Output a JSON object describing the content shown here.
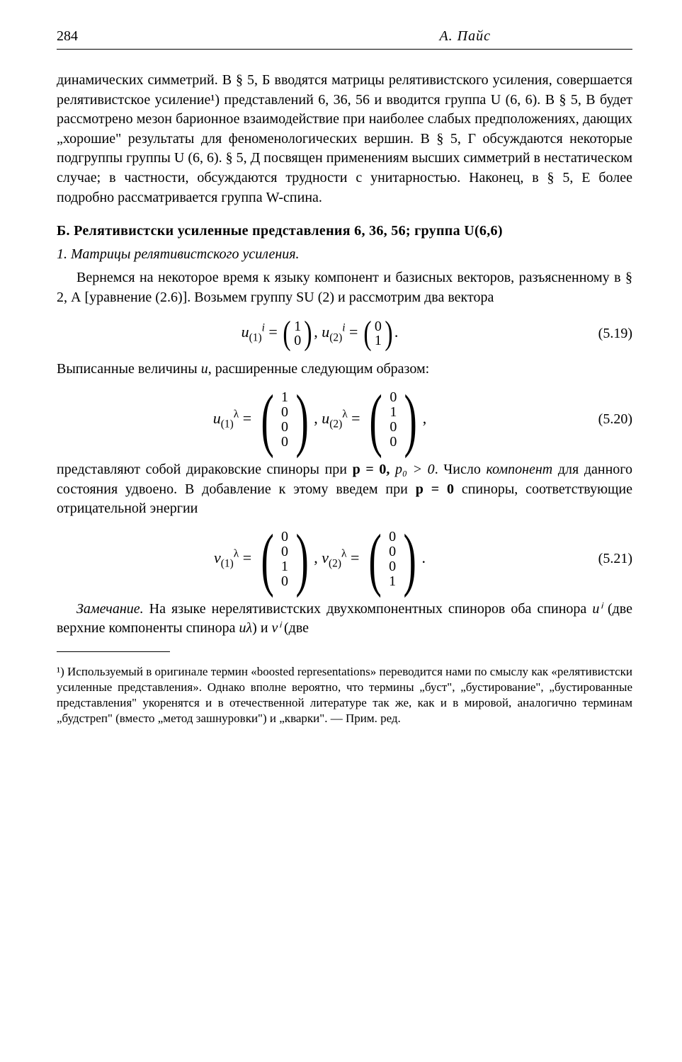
{
  "header": {
    "page_number": "284",
    "author": "А. Пайс"
  },
  "p1": "динамических симметрий. В § 5, Б вводятся матрицы релятивистского усиления, совершается релятивистское усиление¹) представлений 6, 36, 56 и вводится группа U (6, 6). В § 5, В будет рассмотрено мезон барионное взаимодействие при наиболее слабых предположениях, дающих „хорошие\" результаты для феноменологических вершин. В § 5, Г обсуждаются некоторые подгруппы группы U (6, 6). § 5, Д посвящен применениям высших симметрий в нестатическом случае; в частности, обсуждаются трудности с унитарностью. Наконец, в § 5, Е более подробно рассматривается группа W-спина.",
  "section_b": "Б. Релятивистски усиленные представления 6, 36, 56; группа U(6,6)",
  "subsection_1": "1. Матрицы релятивистского усиления.",
  "p2": "Вернемся на некоторое время к языку компонент и базисных векторов, разъясненному в § 2, А [уравнение (2.6)]. Возьмем группу SU (2) и рассмотрим два вектора",
  "eq_519": {
    "u1_label_pre": "u",
    "u1_sub": "(1)",
    "u1_sup": "i",
    "u1_eq": " = ",
    "u1_top": "1",
    "u1_bot": "0",
    "sep": ",    ",
    "u2_label_pre": "u",
    "u2_sub": "(2)",
    "u2_sup": "i",
    "u2_eq": " = ",
    "u2_top": "0",
    "u2_bot": "1",
    "tail": ".",
    "num": "(5.19)"
  },
  "p3_pre": "Выписанные величины ",
  "p3_u": "u",
  "p3_post": ", расширенные следующим образом:",
  "eq_520": {
    "u1_label_pre": "u",
    "u1_sub": "(1)",
    "u1_sup": "λ",
    "eq": " = ",
    "u1_c1": "1",
    "u1_c2": "0",
    "u1_c3": "0",
    "u1_c4": "0",
    "sep": ",    ",
    "u2_label_pre": "u",
    "u2_sub": "(2)",
    "u2_sup": "λ",
    "u2_c1": "0",
    "u2_c2": "1",
    "u2_c3": "0",
    "u2_c4": "0",
    "tail": ",",
    "num": "(5.20)"
  },
  "p4_a": "представляют собой дираковские спиноры при ",
  "p4_b": "p = 0, ",
  "p4_c": "p₀ > 0",
  "p4_d": ". Число ",
  "p4_e": "компонент",
  "p4_f": " для данного состояния удвоено. В добавление к этому введем при ",
  "p4_g": "p = 0",
  "p4_h": " спиноры, соответствующие отрицательной энергии",
  "eq_521": {
    "v1_label_pre": "v",
    "v1_sub": "(1)",
    "v1_sup": "λ",
    "eq": " = ",
    "v1_c1": "0",
    "v1_c2": "0",
    "v1_c3": "1",
    "v1_c4": "0",
    "sep": ",    ",
    "v2_label_pre": "v",
    "v2_sub": "(2)",
    "v2_sup": "λ",
    "v2_c1": "0",
    "v2_c2": "0",
    "v2_c3": "0",
    "v2_c4": "1",
    "tail": ".",
    "num": "(5.21)"
  },
  "p5_a": "Замечание.",
  "p5_b": " На языке нерелятивистских двухкомпонентных спиноров оба спинора ",
  "p5_c": "uⁱ",
  "p5_d": " (две верхние компоненты спинора ",
  "p5_e": "uλ",
  "p5_f": ") и ",
  "p5_g": "vⁱ",
  "p5_h": " (две",
  "footnote": "¹) Используемый в оригинале термин «boosted representations» переводится нами по смыслу как «релятивистски усиленные представления». Однако вполне вероятно, что термины „буст\", „бустирование\", „бустированные представления\" укоренятся и в отечественной литературе так же, как и в мировой, аналогично терминам „будстреп\" (вместо „метод зашнуровки\") и „кварки\". — Прим. ред."
}
